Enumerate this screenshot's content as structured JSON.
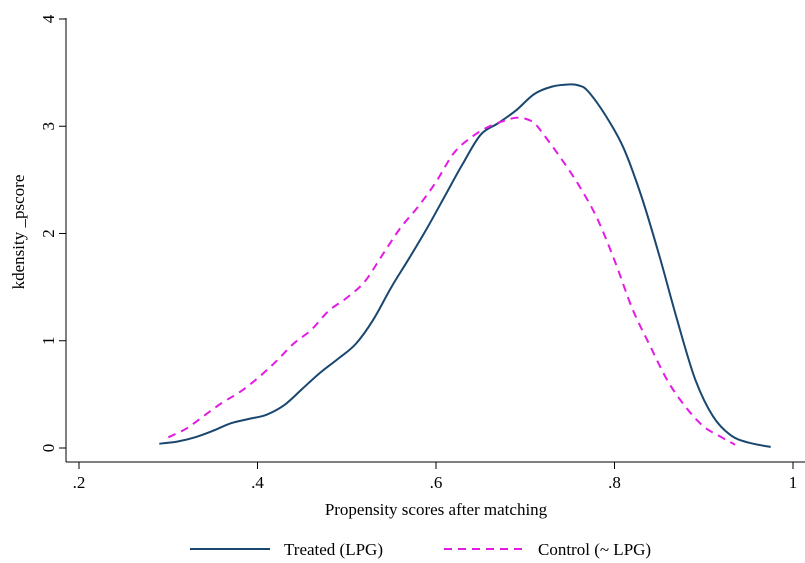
{
  "chart_data": {
    "type": "line",
    "title": "",
    "xlabel": "Propensity scores after matching",
    "ylabel": "kdensity _pscore",
    "xlim": [
      0.2,
      1.0
    ],
    "ylim": [
      0,
      4
    ],
    "x_ticks": [
      {
        "value": 0.2,
        "label": ".2"
      },
      {
        "value": 0.4,
        "label": ".4"
      },
      {
        "value": 0.6,
        "label": ".6"
      },
      {
        "value": 0.8,
        "label": ".8"
      },
      {
        "value": 1.0,
        "label": "1"
      }
    ],
    "y_ticks": [
      {
        "value": 0,
        "label": "0"
      },
      {
        "value": 1,
        "label": "1"
      },
      {
        "value": 2,
        "label": "2"
      },
      {
        "value": 3,
        "label": "3"
      },
      {
        "value": 4,
        "label": "4"
      }
    ],
    "grid": false,
    "legend_position": "bottom",
    "series": [
      {
        "name": "Treated (LPG)",
        "color": "#1a476f",
        "style": "solid",
        "x": [
          0.29,
          0.31,
          0.33,
          0.35,
          0.37,
          0.39,
          0.41,
          0.43,
          0.45,
          0.47,
          0.49,
          0.51,
          0.53,
          0.55,
          0.57,
          0.59,
          0.61,
          0.63,
          0.65,
          0.67,
          0.69,
          0.71,
          0.73,
          0.75,
          0.76,
          0.77,
          0.79,
          0.81,
          0.83,
          0.85,
          0.87,
          0.89,
          0.91,
          0.93,
          0.95,
          0.975
        ],
        "y": [
          0.04,
          0.06,
          0.1,
          0.16,
          0.23,
          0.27,
          0.31,
          0.4,
          0.55,
          0.7,
          0.83,
          0.97,
          1.2,
          1.5,
          1.77,
          2.05,
          2.35,
          2.65,
          2.92,
          3.03,
          3.15,
          3.3,
          3.37,
          3.39,
          3.38,
          3.33,
          3.1,
          2.8,
          2.35,
          1.8,
          1.2,
          0.65,
          0.3,
          0.12,
          0.05,
          0.01
        ]
      },
      {
        "name": "Control (~ LPG)",
        "color": "#e31be3",
        "style": "dashed",
        "x": [
          0.3,
          0.32,
          0.34,
          0.36,
          0.38,
          0.4,
          0.42,
          0.44,
          0.46,
          0.48,
          0.5,
          0.52,
          0.54,
          0.56,
          0.58,
          0.6,
          0.62,
          0.64,
          0.66,
          0.68,
          0.69,
          0.7,
          0.71,
          0.72,
          0.74,
          0.76,
          0.78,
          0.8,
          0.82,
          0.84,
          0.86,
          0.88,
          0.9,
          0.92,
          0.935
        ],
        "y": [
          0.1,
          0.18,
          0.3,
          0.42,
          0.52,
          0.65,
          0.8,
          0.97,
          1.1,
          1.28,
          1.4,
          1.55,
          1.8,
          2.05,
          2.25,
          2.48,
          2.75,
          2.9,
          3.0,
          3.06,
          3.08,
          3.07,
          3.03,
          2.93,
          2.7,
          2.45,
          2.15,
          1.75,
          1.3,
          0.95,
          0.62,
          0.38,
          0.2,
          0.1,
          0.03
        ]
      }
    ]
  }
}
